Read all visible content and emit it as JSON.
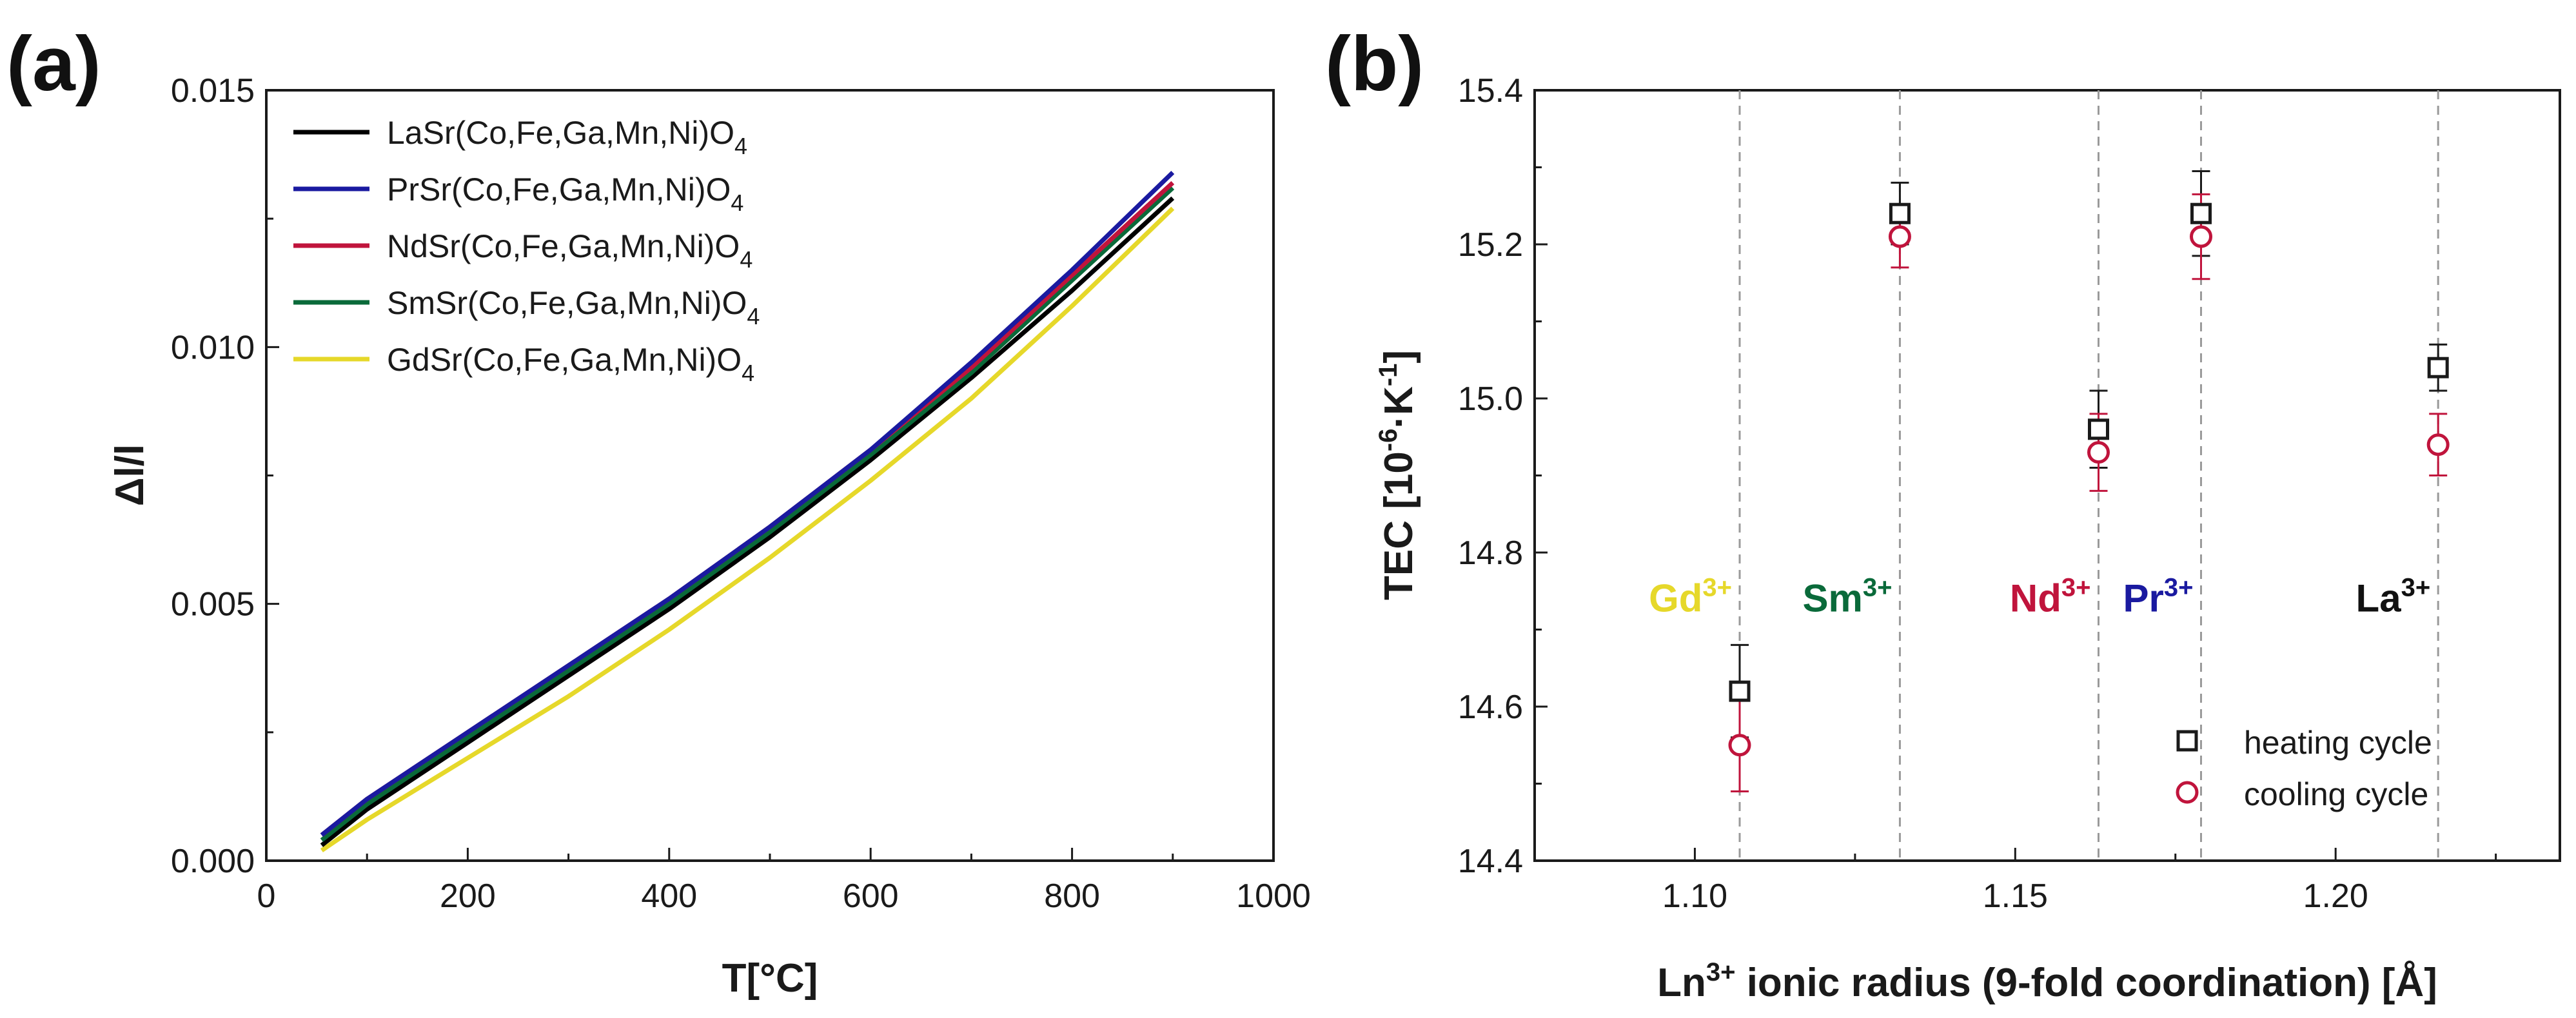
{
  "chart_data": [
    {
      "panel_label": "(a)",
      "type": "line",
      "xlabel": "T[°C]",
      "ylabel": "Δl/l",
      "xlim": [
        0,
        1000
      ],
      "ylim": [
        0.0,
        0.015
      ],
      "xticks": [
        "0",
        "200",
        "400",
        "600",
        "800",
        "1000"
      ],
      "yticks": [
        "0.000",
        "0.005",
        "0.010",
        "0.015"
      ],
      "legend_position": "top-left",
      "series": [
        {
          "name": "LaSr(Co,Fe,Ga,Mn,Ni)O",
          "subscript": "4",
          "color": "#000000",
          "x": [
            55,
            100,
            200,
            300,
            400,
            500,
            600,
            700,
            800,
            900
          ],
          "y": [
            0.0003,
            0.001,
            0.0023,
            0.0036,
            0.0049,
            0.0063,
            0.0078,
            0.0094,
            0.0111,
            0.0129
          ]
        },
        {
          "name": "PrSr(Co,Fe,Ga,Mn,Ni)O",
          "subscript": "4",
          "color": "#1a1aa0",
          "x": [
            55,
            100,
            200,
            300,
            400,
            500,
            600,
            700,
            800,
            900
          ],
          "y": [
            0.0005,
            0.0012,
            0.0025,
            0.0038,
            0.0051,
            0.0065,
            0.008,
            0.0097,
            0.0115,
            0.0134
          ]
        },
        {
          "name": "NdSr(Co,Fe,Ga,Mn,Ni)O",
          "subscript": "4",
          "color": "#c0143c",
          "x": [
            55,
            100,
            200,
            300,
            400,
            500,
            600,
            700,
            800,
            900
          ],
          "y": [
            0.0005,
            0.0012,
            0.0025,
            0.0038,
            0.0051,
            0.0065,
            0.008,
            0.0096,
            0.0114,
            0.0132
          ]
        },
        {
          "name": "SmSr(Co,Fe,Ga,Mn,Ni)O",
          "subscript": "4",
          "color": "#0a6a3a",
          "x": [
            55,
            100,
            200,
            300,
            400,
            500,
            600,
            700,
            800,
            900
          ],
          "y": [
            0.0004,
            0.0011,
            0.0024,
            0.0037,
            0.005,
            0.0064,
            0.0079,
            0.0095,
            0.0113,
            0.0131
          ]
        },
        {
          "name": "GdSr(Co,Fe,Ga,Mn,Ni)O",
          "subscript": "4",
          "color": "#e6d82a",
          "x": [
            55,
            100,
            200,
            300,
            400,
            500,
            600,
            700,
            800,
            900
          ],
          "y": [
            0.0002,
            0.0008,
            0.002,
            0.0032,
            0.0045,
            0.0059,
            0.0074,
            0.009,
            0.0108,
            0.0127
          ]
        }
      ]
    },
    {
      "panel_label": "(b)",
      "type": "scatter",
      "xlabel_main": "Ln",
      "xlabel_sup": "3+",
      "xlabel_rest": " ionic radius (9-fold coordination) [Å]",
      "ylabel_main": "TEC [10",
      "ylabel_sup1": "-6",
      "ylabel_mid": "·K",
      "ylabel_sup2": "-1",
      "ylabel_end": "]",
      "xlim": [
        1.075,
        1.235
      ],
      "ylim": [
        14.4,
        15.4
      ],
      "xticks": [
        "1.10",
        "1.15",
        "1.20"
      ],
      "yticks": [
        "14.4",
        "14.6",
        "14.8",
        "15.0",
        "15.2",
        "15.4"
      ],
      "legend_position": "bottom-right",
      "series": [
        {
          "name": "heating cycle",
          "marker": "square",
          "color": "#1a1a1a",
          "x": [
            1.107,
            1.132,
            1.163,
            1.179,
            1.216
          ],
          "y": [
            14.62,
            15.24,
            14.96,
            15.24,
            15.04
          ],
          "err": [
            0.06,
            0.04,
            0.05,
            0.055,
            0.03
          ]
        },
        {
          "name": "cooling cycle",
          "marker": "circle",
          "color": "#c0143c",
          "x": [
            1.107,
            1.132,
            1.163,
            1.179,
            1.216
          ],
          "y": [
            14.55,
            15.21,
            14.93,
            15.21,
            14.94
          ],
          "err": [
            0.06,
            0.04,
            0.05,
            0.055,
            0.04
          ]
        }
      ],
      "reference_lines": [
        1.107,
        1.132,
        1.163,
        1.179,
        1.216
      ],
      "ion_labels": [
        {
          "base": "Gd",
          "sup": "3+",
          "color": "#e6d82a",
          "x": 1.107,
          "y": 14.74
        },
        {
          "base": "Sm",
          "sup": "3+",
          "color": "#0a6a3a",
          "x": 1.132,
          "y": 14.74
        },
        {
          "base": "Nd",
          "sup": "3+",
          "color": "#c0143c",
          "x": 1.163,
          "y": 14.74
        },
        {
          "base": "Pr",
          "sup": "3+",
          "color": "#1a1aa0",
          "x": 1.179,
          "y": 14.74
        },
        {
          "base": "La",
          "sup": "3+",
          "color": "#111111",
          "x": 1.216,
          "y": 14.74
        }
      ]
    }
  ]
}
